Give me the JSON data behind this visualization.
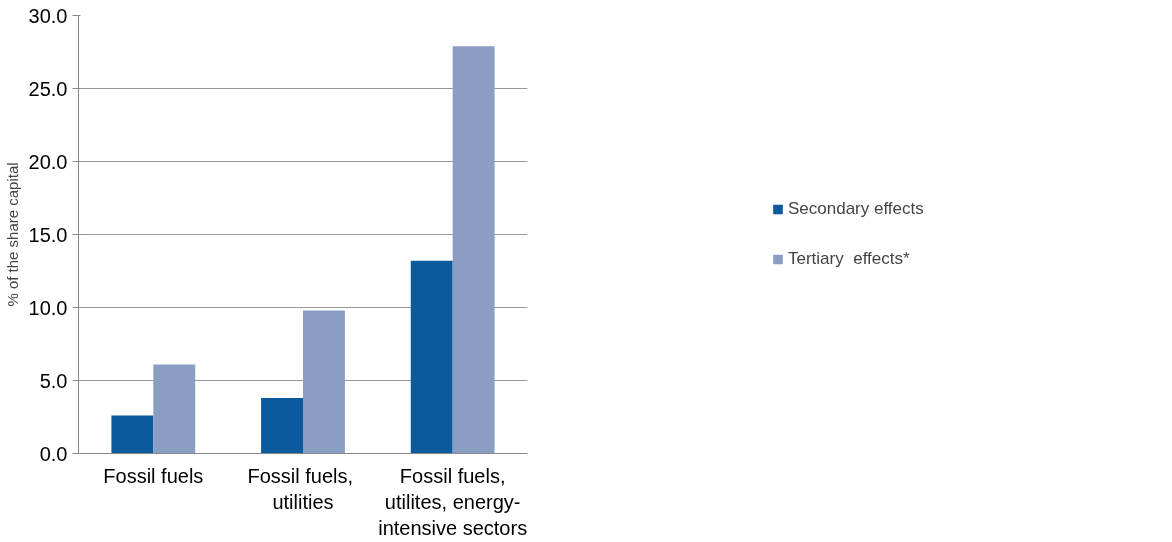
{
  "chart_data": {
    "type": "bar",
    "ylabel": "% of the share capital",
    "categories": [
      "Fossil fuels",
      "Fossil  fuels, utilities",
      "Fossil fuels, utilites, energy-intensive sectors"
    ],
    "series": [
      {
        "name": "Secondary effects",
        "color": "#0b5a9e",
        "values": [
          2.6,
          3.8,
          13.2
        ]
      },
      {
        "name": "Tertiary  effects*",
        "color": "#8a9ec3",
        "values": [
          6.1,
          9.8,
          27.9
        ]
      }
    ],
    "ylim": [
      0,
      30
    ],
    "yticks": [
      {
        "value": 0,
        "label": "0.0"
      },
      {
        "value": 5,
        "label": "5.0"
      },
      {
        "value": 10,
        "label": "10.0"
      },
      {
        "value": 15,
        "label": "15.0"
      },
      {
        "value": 20,
        "label": "20.0"
      },
      {
        "value": 25,
        "label": "25.0"
      },
      {
        "value": 30,
        "label": "30.0"
      }
    ],
    "grid": "y",
    "legend": "right"
  }
}
